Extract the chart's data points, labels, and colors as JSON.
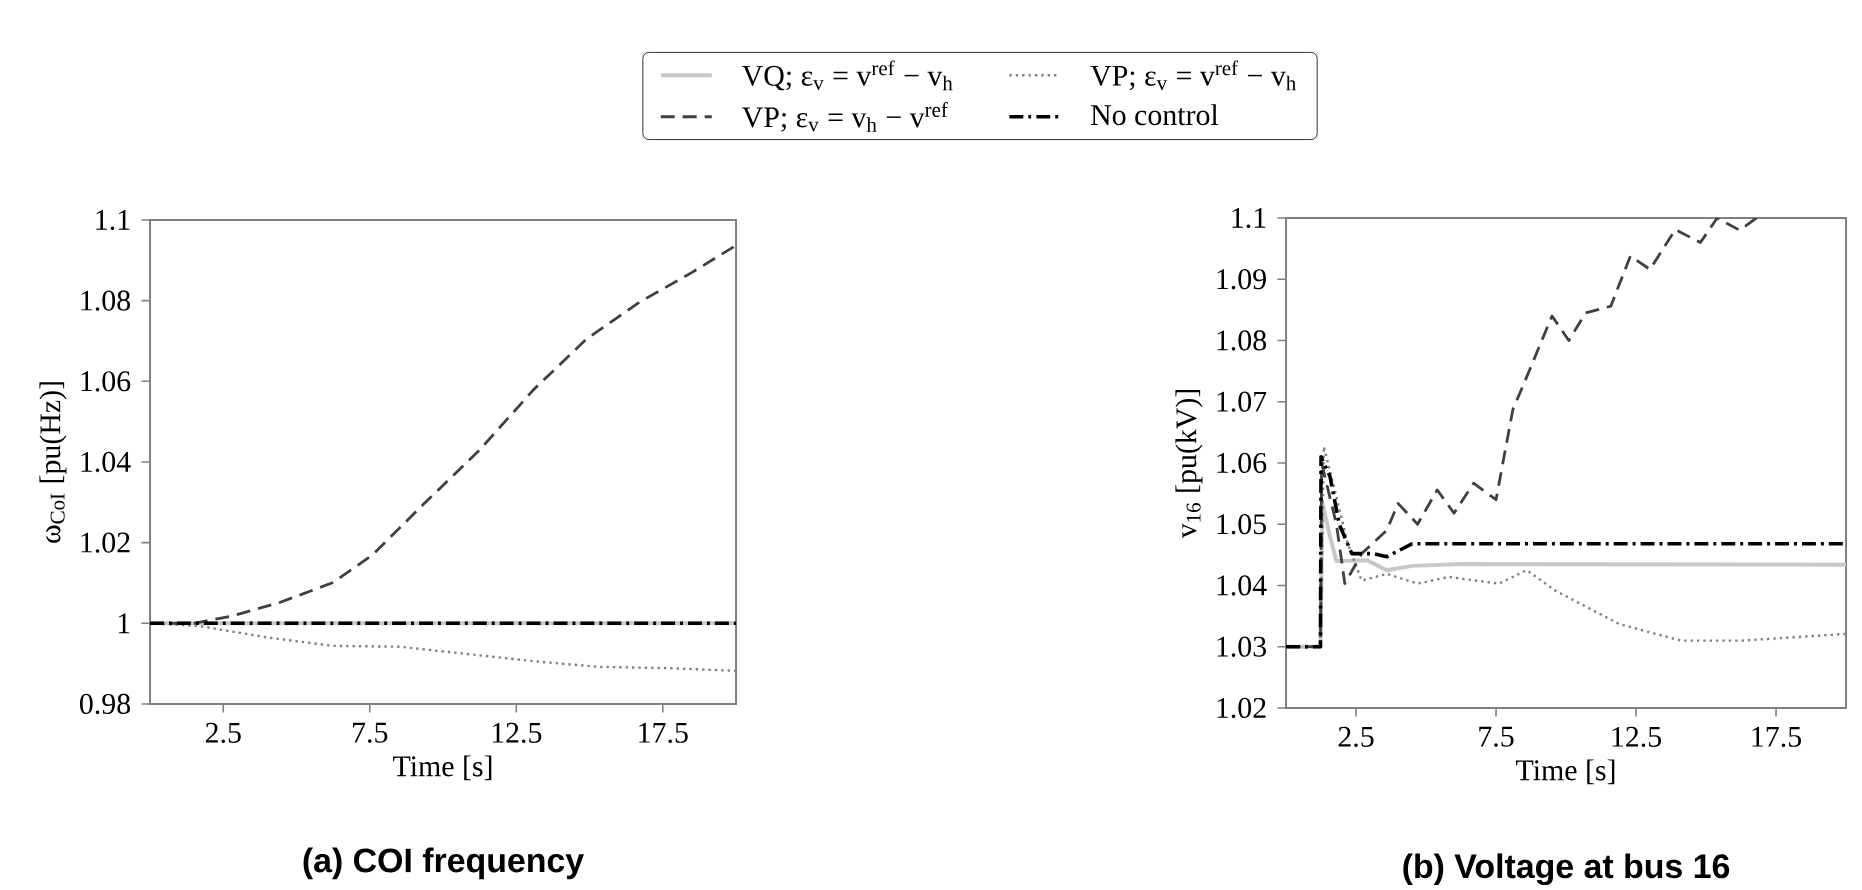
{
  "chart_data": [
    {
      "type": "line",
      "title": "(a) COI frequency",
      "xlabel": "Time [s]",
      "ylabel": "ω$_{CoI}$ [pu(Hz)]",
      "xlim": [
        0,
        20
      ],
      "ylim": [
        0.98,
        1.1
      ],
      "xticks": [
        2.5,
        7.5,
        12.5,
        17.5
      ],
      "yticks": [
        0.98,
        1,
        1.02,
        1.04,
        1.06,
        1.08,
        1.1
      ],
      "legend": "top",
      "grid": false,
      "series": [
        {
          "name": "VQ; ε$_{v}$ = v$^{ref}$ − v$_{h}$",
          "color": "#c8c8c8",
          "line_style": "solid",
          "x": [
            0,
            20
          ],
          "values": [
            1.0,
            1.0
          ]
        },
        {
          "name": "VP; ε$_{v}$ = v$^{ref}$ − v$_{h}$",
          "color": "#808080",
          "line_style": "dotted",
          "x": [
            0,
            1.7,
            4,
            6.25,
            8.5,
            10.8,
            13.1,
            15.3,
            17.6,
            20
          ],
          "values": [
            1.0,
            0.9993,
            0.9965,
            0.9944,
            0.9942,
            0.9924,
            0.9906,
            0.9892,
            0.9889,
            0.9882
          ]
        },
        {
          "name": "VP; ε$_{v}$ = v$_{h}$ − v$^{ref}$",
          "color": "#404040",
          "line_style": "dashed",
          "x": [
            0,
            1.5,
            2.8,
            4.4,
            6.25,
            7.6,
            9.4,
            11.25,
            13.1,
            14.9,
            16.7,
            18.5,
            20
          ],
          "values": [
            1.0,
            1.0,
            1.0018,
            1.0051,
            1.0101,
            1.017,
            1.03,
            1.043,
            1.058,
            1.0705,
            1.0796,
            1.087,
            1.0937
          ]
        },
        {
          "name": "No control",
          "color": "#000000",
          "line_style": "dashdot",
          "x": [
            0,
            20
          ],
          "values": [
            1.0,
            1.0
          ]
        }
      ]
    },
    {
      "type": "line",
      "title": "(b) Voltage at bus 16",
      "xlabel": "Time [s]",
      "ylabel": "v$_{16}$ [pu(kV)]",
      "xlim": [
        0,
        20
      ],
      "ylim": [
        1.02,
        1.1
      ],
      "xticks": [
        2.5,
        7.5,
        12.5,
        17.5
      ],
      "yticks": [
        1.02,
        1.03,
        1.04,
        1.05,
        1.06,
        1.07,
        1.08,
        1.09,
        1.1
      ],
      "grid": false,
      "series": [
        {
          "color": "#c8c8c8",
          "line_style": "solid",
          "x": [
            0,
            1.23,
            1.3,
            1.57,
            1.8,
            2.9,
            3.6,
            4.5,
            6.3,
            20
          ],
          "values": [
            1.03,
            1.03,
            1.0534,
            1.048,
            1.044,
            1.0441,
            1.0425,
            1.0432,
            1.0435,
            1.0434
          ]
        },
        {
          "color": "#808080",
          "line_style": "dotted",
          "x": [
            0,
            1.23,
            1.35,
            1.8,
            2.2,
            2.7,
            3.6,
            4.7,
            5.8,
            7.6,
            8.6,
            9.6,
            11.9,
            14.1,
            16.3,
            20
          ],
          "values": [
            1.03,
            1.03,
            1.0627,
            1.0545,
            1.0469,
            1.0408,
            1.0419,
            1.0403,
            1.0414,
            1.0403,
            1.0425,
            1.0392,
            1.0337,
            1.031,
            1.031,
            1.0321
          ]
        },
        {
          "color": "#404040",
          "line_style": "dashed",
          "x": [
            0,
            1.23,
            1.27,
            1.8,
            2.1,
            2.7,
            3.6,
            4.0,
            4.7,
            5.4,
            6.0,
            6.7,
            7.5,
            8.1,
            8.5,
            9.5,
            10.1,
            10.7,
            11.6,
            12.3,
            13.0,
            13.9,
            14.8,
            15.4,
            16.2,
            16.8
          ],
          "values": [
            1.03,
            1.03,
            1.06,
            1.05,
            1.0403,
            1.0452,
            1.049,
            1.0534,
            1.05,
            1.0556,
            1.0518,
            1.0567,
            1.054,
            1.0687,
            1.073,
            1.084,
            1.08,
            1.0845,
            1.0856,
            1.0938,
            1.0916,
            1.0981,
            1.096,
            1.1,
            1.098,
            1.1
          ]
        },
        {
          "color": "#000000",
          "line_style": "dashdot",
          "x": [
            0,
            1.23,
            1.25,
            1.57,
            1.9,
            2.35,
            3.1,
            3.6,
            4.5,
            20
          ],
          "values": [
            1.03,
            1.03,
            1.061,
            1.0578,
            1.05,
            1.0452,
            1.0452,
            1.0447,
            1.0468,
            1.0468
          ]
        }
      ]
    }
  ]
}
